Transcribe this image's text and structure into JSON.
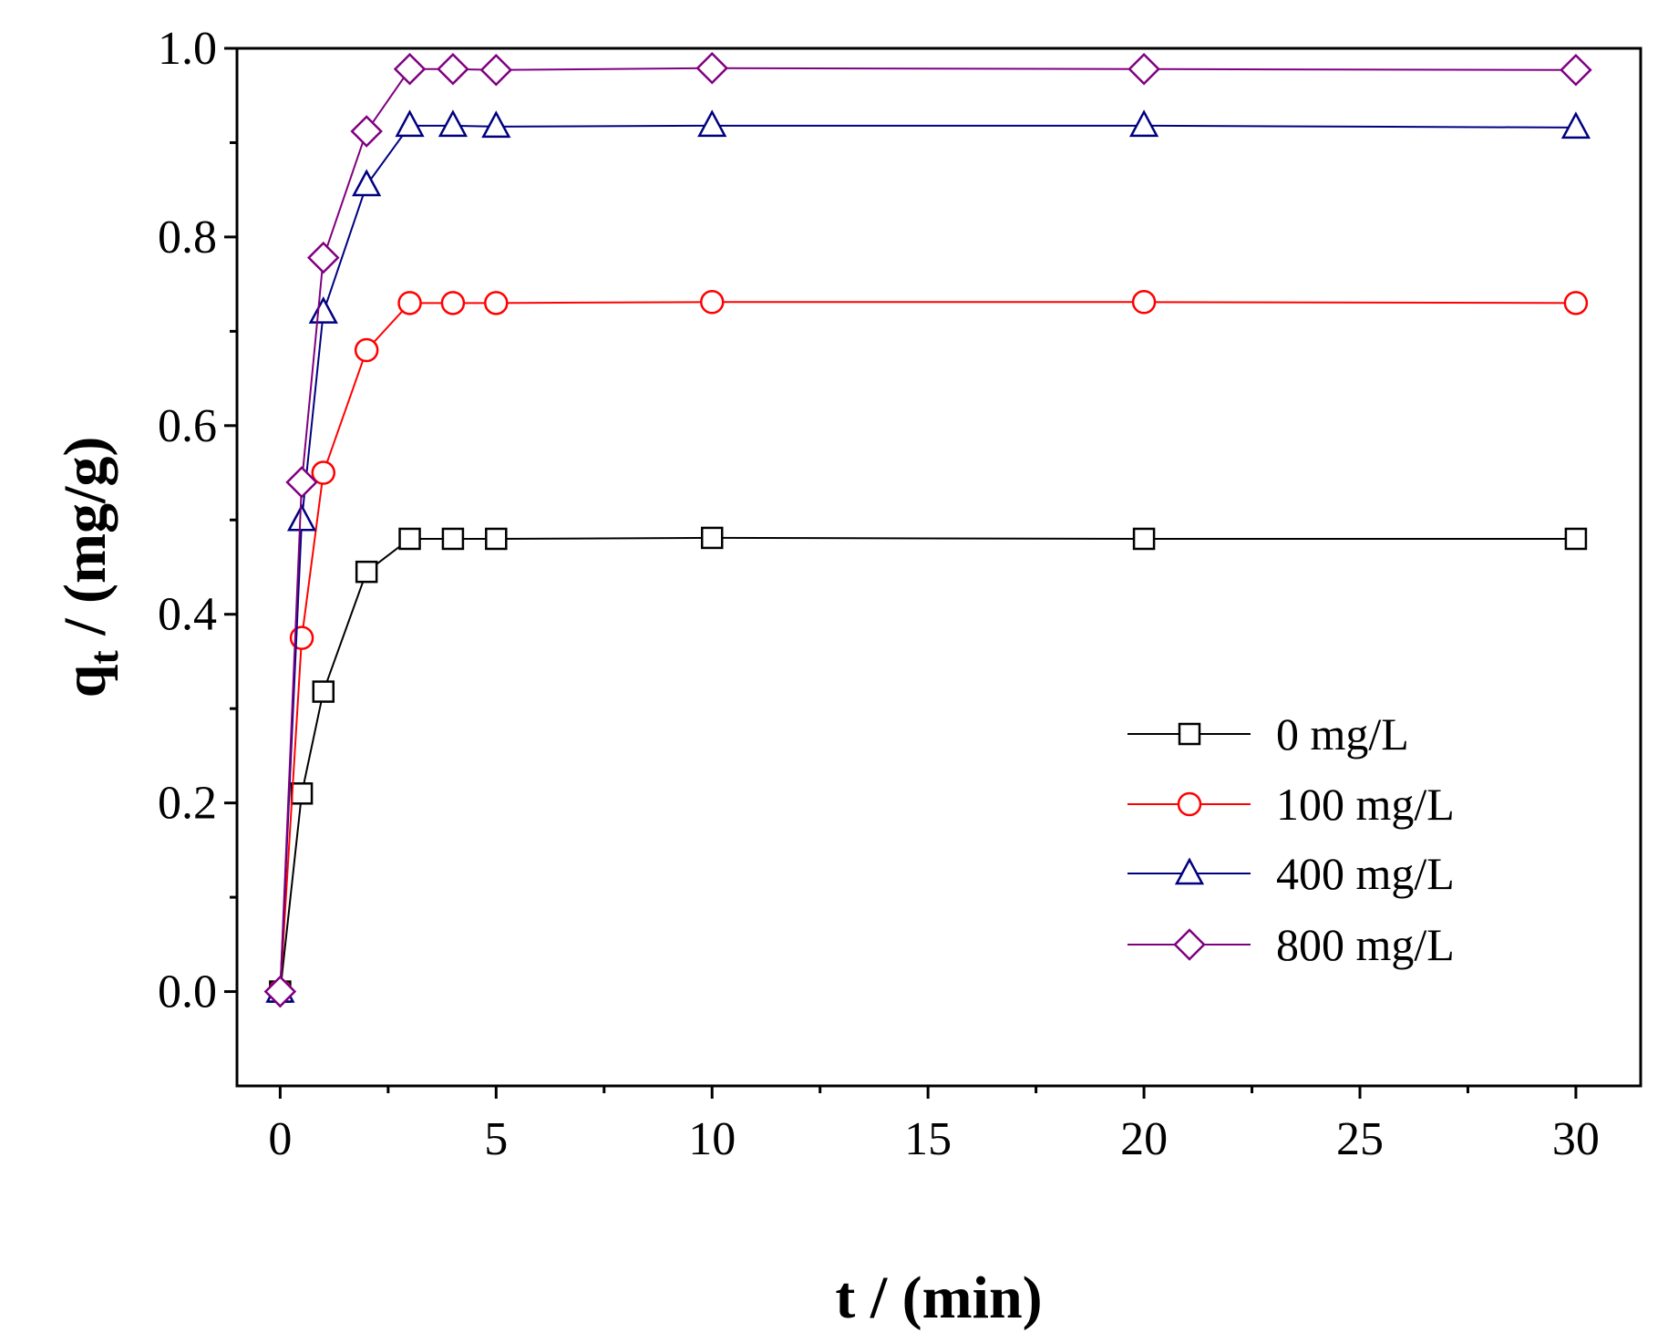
{
  "chart_data": {
    "type": "line",
    "xlabel": "t / (min)",
    "ylabel_main": "q",
    "ylabel_sub": "t",
    "ylabel_rest": " / (mg/g)",
    "xlim": [
      -1,
      31.5
    ],
    "ylim": [
      -0.1,
      1.0
    ],
    "x_ticks": [
      0,
      5,
      10,
      15,
      20,
      25,
      30
    ],
    "y_ticks": [
      0.0,
      0.2,
      0.4,
      0.6,
      0.8,
      1.0
    ],
    "x_tick_labels": [
      "0",
      "5",
      "10",
      "15",
      "20",
      "25",
      "30"
    ],
    "y_tick_labels": [
      "0.0",
      "0.2",
      "0.4",
      "0.6",
      "0.8",
      "1.0"
    ],
    "x_minor_ticks": [
      2.5,
      7.5,
      12.5,
      17.5,
      22.5,
      27.5
    ],
    "y_minor_ticks": [
      0.1,
      0.3,
      0.5,
      0.7,
      0.9
    ],
    "grid": false,
    "legend_position": "lower-right",
    "x": [
      0,
      0.5,
      1,
      2,
      3,
      4,
      5,
      10,
      20,
      30
    ],
    "series": [
      {
        "name": "0 mg/L",
        "color": "#000000",
        "marker": "square",
        "values": [
          0,
          0.21,
          0.318,
          0.445,
          0.48,
          0.48,
          0.48,
          0.481,
          0.48,
          0.48
        ]
      },
      {
        "name": "100 mg/L",
        "color": "#ff0000",
        "marker": "circle",
        "values": [
          0,
          0.375,
          0.55,
          0.68,
          0.73,
          0.73,
          0.73,
          0.731,
          0.731,
          0.73
        ]
      },
      {
        "name": "400 mg/L",
        "color": "#000080",
        "marker": "triangle",
        "values": [
          0,
          0.5,
          0.72,
          0.855,
          0.918,
          0.918,
          0.917,
          0.918,
          0.918,
          0.916
        ]
      },
      {
        "name": "800 mg/L",
        "color": "#800080",
        "marker": "diamond",
        "values": [
          0,
          0.54,
          0.778,
          0.912,
          0.978,
          0.978,
          0.977,
          0.979,
          0.978,
          0.977
        ]
      }
    ]
  }
}
